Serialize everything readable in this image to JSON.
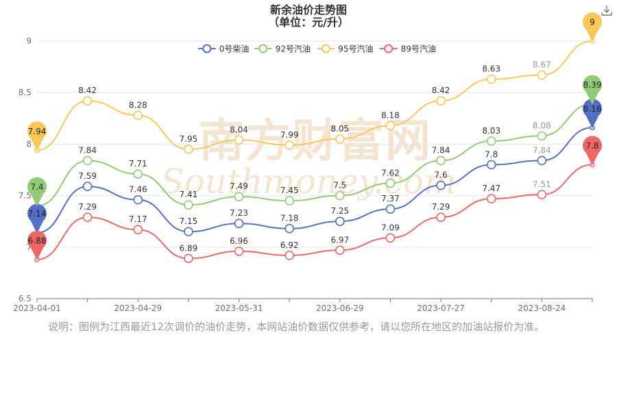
{
  "chart_data": {
    "type": "line",
    "title": "新余油价走势图",
    "subtitle": "（单位：元/升）",
    "ylim": [
      6.5,
      9
    ],
    "yticks": [
      6.5,
      7,
      7.5,
      8,
      8.5,
      9
    ],
    "ytick_labels": [
      "6.5",
      "7",
      "7.5",
      "8",
      "8.5",
      "9"
    ],
    "x_tick_labels": [
      {
        "index": 0,
        "label": "2023-04-01"
      },
      {
        "index": 2,
        "label": "2023-04-29"
      },
      {
        "index": 4,
        "label": "2023-05-31"
      },
      {
        "index": 6,
        "label": "2023-06-29"
      },
      {
        "index": 8,
        "label": "2023-07-27"
      },
      {
        "index": 10,
        "label": "2023-08-24"
      }
    ],
    "num_points": 12,
    "legend_position": "top-center",
    "smooth": true,
    "series": [
      {
        "name": "0号柴油",
        "color": "#5470c6",
        "values": [
          7.14,
          7.59,
          7.46,
          7.15,
          7.23,
          7.18,
          7.25,
          7.37,
          7.6,
          7.8,
          7.84,
          8.16
        ],
        "max_label": "8.16",
        "min_label": "7.14"
      },
      {
        "name": "92号汽油",
        "color": "#91cc75",
        "values": [
          7.4,
          7.84,
          7.71,
          7.41,
          7.49,
          7.45,
          7.5,
          7.62,
          7.84,
          8.03,
          8.08,
          8.39
        ],
        "max_label": "8.39",
        "min_label": "7.4"
      },
      {
        "name": "95号汽油",
        "color": "#fac858",
        "values": [
          7.94,
          8.42,
          8.28,
          7.95,
          8.04,
          7.99,
          8.05,
          8.18,
          8.42,
          8.63,
          8.67,
          9
        ],
        "max_label": "9",
        "min_label": "7.94"
      },
      {
        "name": "89号汽油",
        "color": "#ee6666",
        "values": [
          6.88,
          7.29,
          7.17,
          6.89,
          6.96,
          6.92,
          6.97,
          7.09,
          7.29,
          7.47,
          7.51,
          7.8
        ],
        "max_label": "7.8",
        "min_label": "6.88"
      }
    ]
  },
  "watermark": {
    "line1": "南方财富网",
    "line2": "Southmoney.com"
  },
  "note": "说明：图例为江西最近12次调价的油价走势，本网站油价数据仅供参考，请以您所在地区的加油站报价为准。"
}
